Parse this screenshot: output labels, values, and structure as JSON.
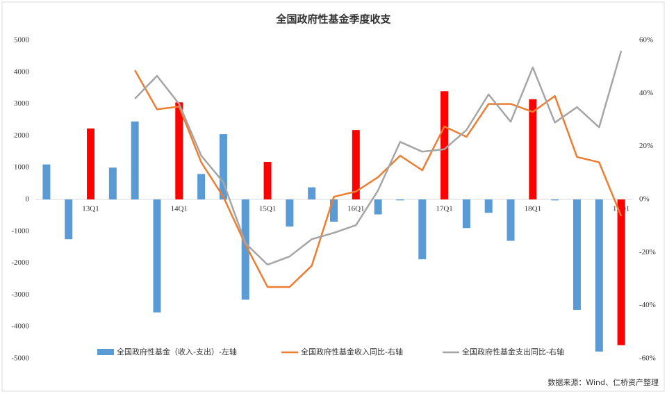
{
  "chart_data": {
    "type": "bar_line_combo",
    "title": "全国政府性基金季度收支",
    "source": "数据来源：Wind、仁桥资产整理",
    "categories": [
      null,
      null,
      "13Q1",
      null,
      null,
      null,
      "14Q1",
      null,
      null,
      null,
      "15Q1",
      null,
      null,
      null,
      "16Q1",
      null,
      null,
      null,
      "17Q1",
      null,
      null,
      null,
      "18Q1",
      null,
      null,
      null,
      "19Q1"
    ],
    "series": [
      {
        "name": "全国政府性基金（收入-支出）-左轴",
        "color": "#5b9bd5",
        "type": "bar",
        "axis": "y",
        "colors": [
          "#5b9bd5",
          "#5b9bd5",
          "#ff0000",
          "#5b9bd5",
          "#5b9bd5",
          "#5b9bd5",
          "#ff0000",
          "#5b9bd5",
          "#5b9bd5",
          "#5b9bd5",
          "#ff0000",
          "#5b9bd5",
          "#5b9bd5",
          "#5b9bd5",
          "#ff0000",
          "#5b9bd5",
          "#5b9bd5",
          "#5b9bd5",
          "#ff0000",
          "#5b9bd5",
          "#5b9bd5",
          "#5b9bd5",
          "#ff0000",
          "#5b9bd5",
          "#5b9bd5",
          "#5b9bd5",
          "#ff0000"
        ],
        "values": [
          1100,
          -1250,
          2230,
          1000,
          2450,
          -3550,
          3050,
          800,
          2050,
          -3150,
          1180,
          -850,
          380,
          -700,
          2180,
          -470,
          -30,
          -1880,
          3400,
          -900,
          -420,
          -1300,
          3150,
          -30,
          -3470,
          -4780,
          -4580
        ]
      },
      {
        "name": "全国政府性基金收入同比-右轴",
        "color": "#ed7d31",
        "type": "line",
        "axis": "y2",
        "values": [
          null,
          null,
          null,
          null,
          48.7,
          34,
          35,
          14,
          1,
          -17,
          -33,
          -33,
          -25,
          1,
          3,
          8.4,
          16.5,
          11,
          27.5,
          23.6,
          36,
          36,
          33,
          39,
          16,
          14,
          -6.3
        ]
      },
      {
        "name": "全国政府性基金支出同比-右轴",
        "color": "#a5a5a5",
        "type": "line",
        "axis": "y2",
        "values": [
          null,
          null,
          null,
          null,
          38,
          46.6,
          36,
          16.5,
          6.5,
          -16.5,
          -24.6,
          -21.5,
          -15,
          -12.6,
          -9.7,
          3.4,
          21.7,
          18,
          18.9,
          26.2,
          39.6,
          29.3,
          49.8,
          29,
          34.8,
          27.2,
          56
        ]
      }
    ],
    "ylim": [
      -5000,
      5000
    ],
    "yticks": [
      -5000,
      -4000,
      -3000,
      -2000,
      -1000,
      0,
      1000,
      2000,
      3000,
      4000,
      5000
    ],
    "y2lim": [
      -60,
      60
    ],
    "y2ticks": [
      {
        "value": -60,
        "label": "-60%"
      },
      {
        "value": -40,
        "label": "-40%"
      },
      {
        "value": -20,
        "label": "-20%"
      },
      {
        "value": 0,
        "label": "0%"
      },
      {
        "value": 20,
        "label": "20%"
      },
      {
        "value": 40,
        "label": "40%"
      },
      {
        "value": 60,
        "label": "60%"
      }
    ],
    "legend": "bottom"
  }
}
